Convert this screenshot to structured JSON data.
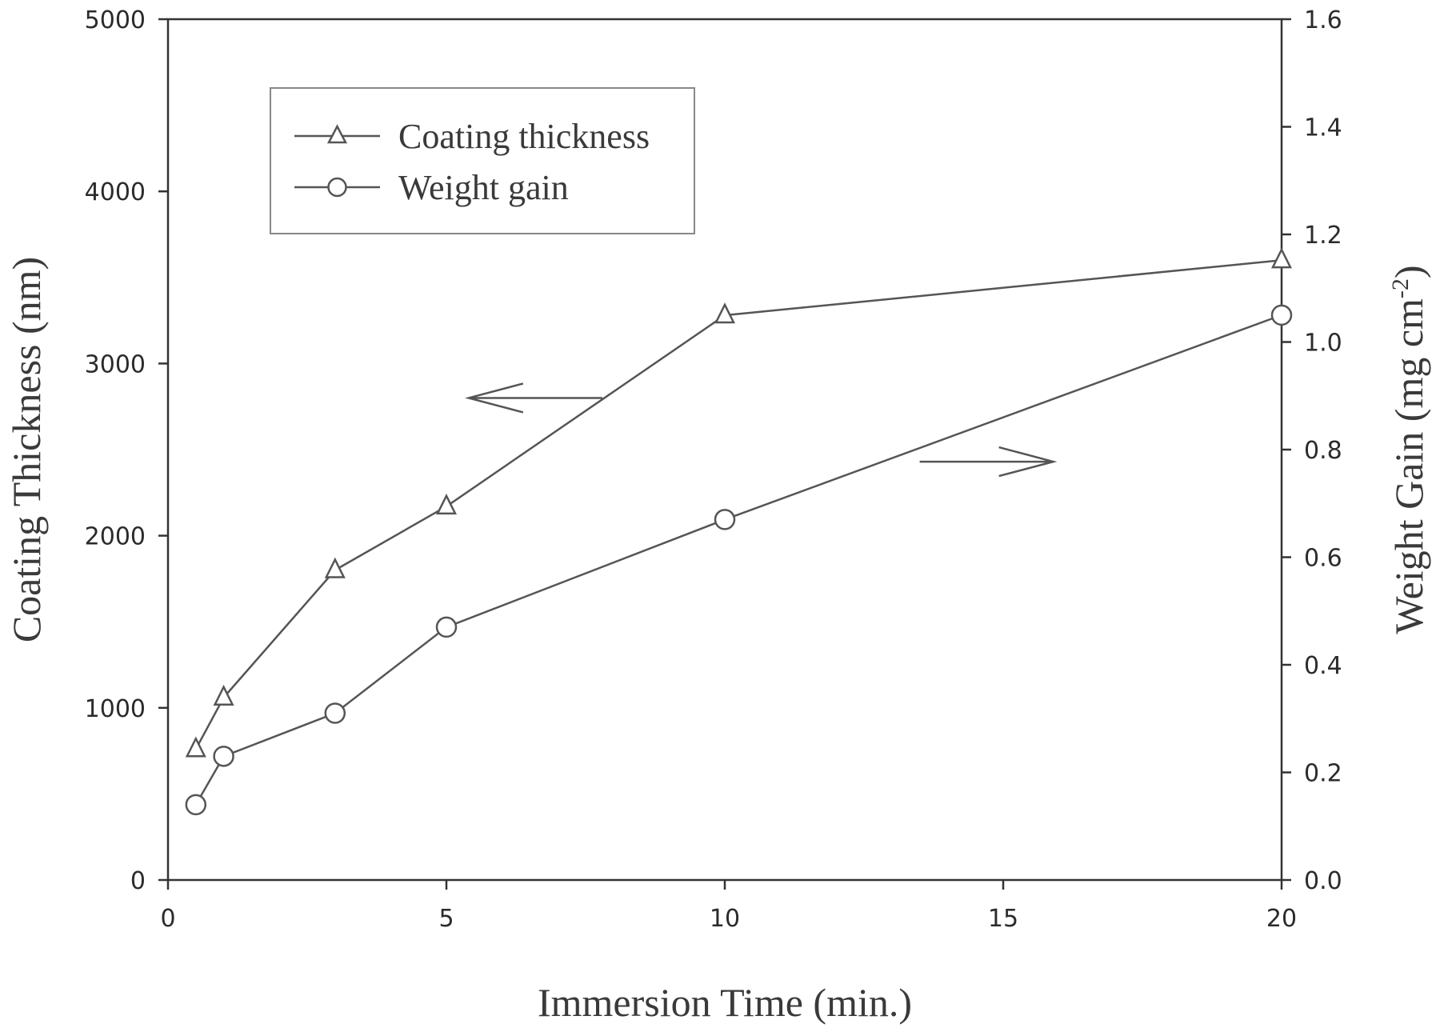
{
  "chart_data": {
    "type": "line",
    "xlabel": "Immersion Time (min.)",
    "ylabel_left": "Coating Thickness (nm)",
    "ylabel_right_main": "Weight Gain (mg cm",
    "ylabel_right_sup": "-2",
    "ylabel_right_close": ")",
    "xlim": [
      0,
      20
    ],
    "ylim_left": [
      0,
      5000
    ],
    "ylim_right": [
      0.0,
      1.6
    ],
    "x_ticks": [
      "0",
      "5",
      "10",
      "15",
      "20"
    ],
    "y_left_ticks": [
      "0",
      "1000",
      "2000",
      "3000",
      "4000",
      "5000"
    ],
    "y_right_ticks": [
      "0.0",
      "0.2",
      "0.4",
      "0.6",
      "0.8",
      "1.0",
      "1.2",
      "1.4",
      "1.6"
    ],
    "grid": false,
    "legend_position": "top-left",
    "series": [
      {
        "name": "Coating thickness",
        "axis": "left",
        "marker": "triangle",
        "x": [
          0.5,
          1,
          3,
          5,
          10,
          20
        ],
        "y": [
          760,
          1060,
          1800,
          2170,
          3280,
          3600
        ]
      },
      {
        "name": "Weight gain",
        "axis": "right",
        "marker": "circle",
        "x": [
          0.5,
          1,
          3,
          5,
          10,
          20
        ],
        "y": [
          0.14,
          0.23,
          0.31,
          0.47,
          0.67,
          1.05
        ]
      }
    ],
    "annotations": [
      {
        "type": "arrow",
        "points_to": "left",
        "x_from": 7.8,
        "x_to": 5.4,
        "y_left": 2800
      },
      {
        "type": "arrow",
        "points_to": "right",
        "x_from": 13.5,
        "x_to": 15.9,
        "y_left": 2430
      }
    ],
    "colors": {
      "line": "#555555",
      "axis": "#333333",
      "marker_fill": "#ffffff"
    }
  }
}
